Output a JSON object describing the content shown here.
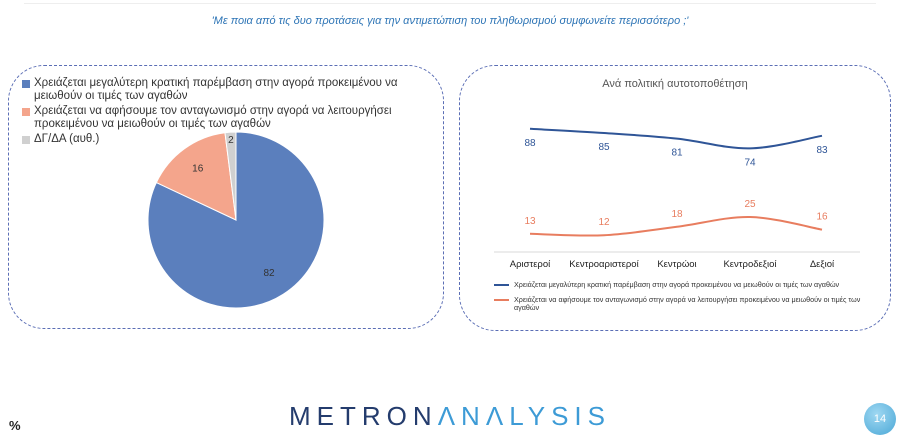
{
  "question": "'Με ποια από τις δυο προτάσεις για την αντιμετώπιση του πληθωρισμού συμφωνείτε περισσότερο ;'",
  "percent_symbol": "%",
  "brand": {
    "part1": "METRON",
    "part2": "ΛNΛLYSIS"
  },
  "page_number": "14",
  "colors": {
    "blue": "#2f5597",
    "pie_blue": "#5b7fbd",
    "salmon": "#f4a58c",
    "line_orange": "#e87d5f",
    "gray": "#d0d0d0"
  },
  "chart_data": [
    {
      "type": "pie",
      "title": "",
      "legend": [
        {
          "label": "Χρειάζεται μεγαλύτερη κρατική παρέμβαση στην αγορά προκειμένου να μειωθούν οι τιμές των αγαθών",
          "color": "#5b7fbd"
        },
        {
          "label": "Χρειάζεται να αφήσουμε τον ανταγωνισμό στην αγορά να λειτουργήσει προκειμένου να μειωθούν οι τιμές των αγαθών",
          "color": "#f4a58c"
        },
        {
          "label": "ΔΓ/ΔΑ (αυθ.)",
          "color": "#d0d0d0"
        }
      ],
      "values": [
        82,
        16,
        2
      ],
      "labels": [
        "82",
        "16",
        "2"
      ],
      "legend_position": "top-left"
    },
    {
      "type": "line",
      "title": "Ανά πολιτική αυτοτοποθέτηση",
      "categories": [
        "Αριστεροί",
        "Κεντροαριστεροί",
        "Κεντρώοι",
        "Κεντροδεξιοί",
        "Δεξιοί"
      ],
      "series": [
        {
          "name": "Χρειάζεται μεγαλύτερη κρατική παρέμβαση στην αγορά προκειμένου να μειωθούν οι τιμές των αγαθών",
          "values": [
            88,
            85,
            81,
            74,
            83
          ],
          "labels": [
            "88",
            "85",
            "81",
            "74",
            "83"
          ],
          "color": "#2f5597"
        },
        {
          "name": "Χρειάζεται να αφήσουμε τον ανταγωνισμό στην αγορά να λειτουργήσει προκειμένου να μειωθούν οι τιμές των αγαθών",
          "values": [
            13,
            12,
            18,
            25,
            16
          ],
          "labels": [
            "13",
            "12",
            "18",
            "25",
            "16"
          ],
          "color": "#e87d5f"
        }
      ],
      "ylim": [
        0,
        100
      ],
      "grid": false,
      "legend_position": "bottom"
    }
  ]
}
